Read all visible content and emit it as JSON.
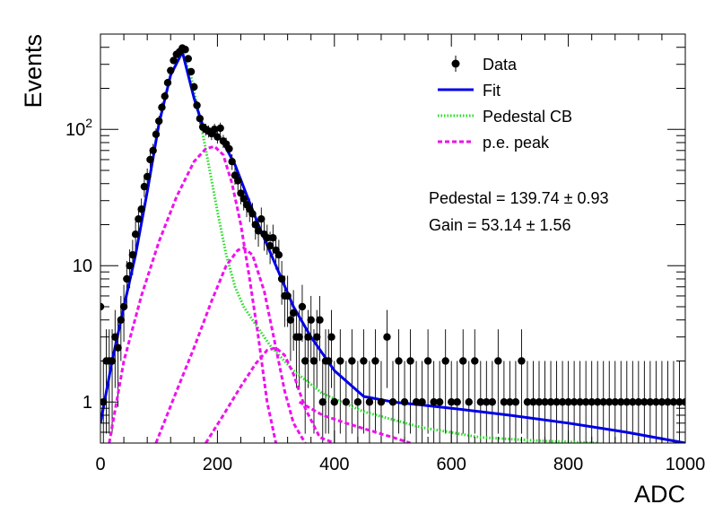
{
  "chart_data": {
    "type": "scatter",
    "xlabel": "ADC",
    "ylabel": "Events",
    "xlim": [
      0,
      1000
    ],
    "ylim": [
      0.5,
      500
    ],
    "y_scale": "log",
    "grid": false,
    "legend_position": "top-right",
    "x_ticks": [
      {
        "value": 0,
        "label": "0"
      },
      {
        "value": 200,
        "label": "200"
      },
      {
        "value": 400,
        "label": "400"
      },
      {
        "value": 600,
        "label": "600"
      },
      {
        "value": 800,
        "label": "800"
      },
      {
        "value": 1000,
        "label": "1000"
      }
    ],
    "y_ticks": [
      {
        "value": 1,
        "base": "1",
        "exp": ""
      },
      {
        "value": 10,
        "base": "10",
        "exp": ""
      },
      {
        "value": 100,
        "base": "10",
        "exp": "2"
      }
    ],
    "legend": [
      {
        "label": "Data",
        "style": "marker",
        "color": "#000000"
      },
      {
        "label": "Fit",
        "style": "solid",
        "color": "#0000e6"
      },
      {
        "label": "Pedestal CB",
        "style": "dotted",
        "color": "#22dd22"
      },
      {
        "label": "p.e. peak",
        "style": "dashed",
        "color": "#ee11ee"
      }
    ],
    "annotations": [
      {
        "text_label": "Pedestal = 139.74 ",
        "pm": "±",
        "text_value": " 0.93"
      },
      {
        "text_label": "Gain = 53.14 ",
        "pm": "±",
        "text_value": " 1.56"
      }
    ],
    "data_points": [
      [
        0,
        5
      ],
      [
        5,
        1
      ],
      [
        10,
        2
      ],
      [
        15,
        2
      ],
      [
        20,
        2
      ],
      [
        25,
        3
      ],
      [
        30,
        2.5
      ],
      [
        35,
        4
      ],
      [
        40,
        5
      ],
      [
        45,
        8
      ],
      [
        50,
        10
      ],
      [
        55,
        12
      ],
      [
        60,
        17
      ],
      [
        65,
        22
      ],
      [
        70,
        26
      ],
      [
        75,
        38
      ],
      [
        80,
        45
      ],
      [
        85,
        60
      ],
      [
        90,
        70
      ],
      [
        95,
        92
      ],
      [
        100,
        115
      ],
      [
        105,
        145
      ],
      [
        110,
        175
      ],
      [
        115,
        220
      ],
      [
        120,
        270
      ],
      [
        125,
        320
      ],
      [
        130,
        355
      ],
      [
        135,
        370
      ],
      [
        140,
        395
      ],
      [
        145,
        385
      ],
      [
        150,
        330
      ],
      [
        155,
        265
      ],
      [
        160,
        205
      ],
      [
        165,
        150
      ],
      [
        170,
        120
      ],
      [
        175,
        104
      ],
      [
        180,
        100
      ],
      [
        185,
        97
      ],
      [
        190,
        93
      ],
      [
        195,
        100
      ],
      [
        200,
        88
      ],
      [
        205,
        102
      ],
      [
        210,
        82
      ],
      [
        215,
        78
      ],
      [
        220,
        72
      ],
      [
        225,
        58
      ],
      [
        230,
        46
      ],
      [
        235,
        42
      ],
      [
        240,
        34
      ],
      [
        245,
        31
      ],
      [
        250,
        28
      ],
      [
        255,
        26
      ],
      [
        260,
        24
      ],
      [
        265,
        20
      ],
      [
        270,
        18
      ],
      [
        275,
        22
      ],
      [
        280,
        17
      ],
      [
        285,
        16
      ],
      [
        290,
        14
      ],
      [
        295,
        16
      ],
      [
        300,
        13
      ],
      [
        305,
        12
      ],
      [
        310,
        8
      ],
      [
        315,
        6
      ],
      [
        320,
        6
      ],
      [
        325,
        4
      ],
      [
        330,
        4.5
      ],
      [
        335,
        3
      ],
      [
        340,
        3
      ],
      [
        345,
        5
      ],
      [
        350,
        2
      ],
      [
        355,
        3
      ],
      [
        360,
        4
      ],
      [
        365,
        2
      ],
      [
        370,
        3
      ],
      [
        375,
        4
      ],
      [
        380,
        1
      ],
      [
        385,
        2
      ],
      [
        390,
        2
      ],
      [
        395,
        3
      ],
      [
        400,
        1
      ],
      [
        410,
        2
      ],
      [
        420,
        1
      ],
      [
        430,
        2
      ],
      [
        440,
        1
      ],
      [
        450,
        2
      ],
      [
        460,
        1
      ],
      [
        470,
        2
      ],
      [
        480,
        1
      ],
      [
        490,
        3
      ],
      [
        500,
        1
      ],
      [
        510,
        2
      ],
      [
        520,
        1
      ],
      [
        530,
        2
      ],
      [
        540,
        1
      ],
      [
        550,
        1
      ],
      [
        560,
        2
      ],
      [
        570,
        1
      ],
      [
        580,
        1
      ],
      [
        590,
        2
      ],
      [
        600,
        1
      ],
      [
        610,
        1
      ],
      [
        620,
        2
      ],
      [
        630,
        1
      ],
      [
        640,
        2
      ],
      [
        650,
        1
      ],
      [
        660,
        1
      ],
      [
        670,
        1
      ],
      [
        680,
        2
      ],
      [
        690,
        1
      ],
      [
        700,
        1
      ],
      [
        710,
        1
      ],
      [
        720,
        2
      ],
      [
        730,
        1
      ],
      [
        740,
        1
      ],
      [
        750,
        1
      ],
      [
        760,
        1
      ],
      [
        770,
        1
      ],
      [
        780,
        1
      ],
      [
        790,
        1
      ],
      [
        800,
        1
      ],
      [
        810,
        1
      ],
      [
        820,
        1
      ],
      [
        830,
        1
      ],
      [
        840,
        1
      ],
      [
        850,
        1
      ],
      [
        860,
        1
      ],
      [
        870,
        1
      ],
      [
        880,
        1
      ],
      [
        890,
        1
      ],
      [
        900,
        1
      ],
      [
        910,
        1
      ],
      [
        920,
        1
      ],
      [
        930,
        1
      ],
      [
        940,
        1
      ],
      [
        950,
        1
      ],
      [
        960,
        1
      ],
      [
        970,
        1
      ],
      [
        980,
        1
      ],
      [
        990,
        1
      ],
      [
        1000,
        1
      ]
    ],
    "series": [
      {
        "name": "Fit",
        "color": "#0000e6",
        "style": "solid",
        "x": [
          0,
          20,
          40,
          60,
          80,
          100,
          120,
          140,
          160,
          175,
          195,
          210,
          230,
          250,
          270,
          300,
          330,
          360,
          400,
          450,
          500,
          550,
          600,
          700,
          800,
          900,
          1000
        ],
        "y": [
          0.7,
          2.0,
          5.0,
          12.0,
          35.0,
          110.0,
          250.0,
          370.0,
          170.0,
          105.0,
          95.0,
          80.0,
          55.0,
          33.0,
          20.0,
          10.0,
          5.0,
          3.0,
          1.7,
          1.1,
          1.0,
          0.95,
          0.9,
          0.8,
          0.7,
          0.6,
          0.5
        ]
      },
      {
        "name": "Pedestal CB",
        "color": "#22dd22",
        "style": "dotted",
        "x": [
          0,
          20,
          40,
          60,
          80,
          100,
          120,
          140,
          155,
          170,
          185,
          200,
          215,
          230,
          245,
          260,
          290,
          330,
          380,
          450,
          550,
          650,
          750,
          850
        ],
        "y": [
          0.7,
          2.0,
          5.0,
          12.0,
          35.0,
          110.0,
          250.0,
          370.0,
          240.0,
          120.0,
          55.0,
          25.0,
          12.0,
          7.0,
          5.0,
          4.0,
          2.6,
          1.7,
          1.15,
          0.85,
          0.65,
          0.55,
          0.52,
          0.5
        ]
      },
      {
        "name": "p.e. peak",
        "color": "#ee11ee",
        "style": "dashed",
        "x": [
          15,
          40,
          70,
          100,
          130,
          160,
          180,
          195,
          210,
          225,
          240,
          255,
          270,
          285,
          300
        ],
        "y": [
          0.5,
          2.0,
          6.0,
          15.0,
          32.0,
          58.0,
          72.0,
          75.0,
          65.0,
          40.0,
          20.0,
          8.0,
          3.0,
          1.0,
          0.5
        ]
      },
      {
        "name": "p.e. peak",
        "color": "#ee11ee",
        "style": "dashed",
        "x": [
          95,
          130,
          160,
          190,
          215,
          235,
          245,
          260,
          280,
          300,
          315,
          330,
          350
        ],
        "y": [
          0.5,
          1.2,
          2.5,
          5.5,
          10.0,
          13.0,
          13.5,
          12.0,
          6.5,
          2.5,
          1.2,
          0.7,
          0.5
        ]
      },
      {
        "name": "p.e. peak",
        "color": "#ee11ee",
        "style": "dashed",
        "x": [
          180,
          210,
          240,
          265,
          285,
          300,
          315,
          330,
          350,
          375,
          400
        ],
        "y": [
          0.5,
          0.8,
          1.3,
          1.9,
          2.4,
          2.5,
          2.2,
          1.6,
          0.9,
          0.55,
          0.5
        ]
      },
      {
        "name": "p.e. peak",
        "color": "#ee11ee",
        "style": "dashed",
        "x": [
          340,
          380,
          420,
          460,
          500,
          530
        ],
        "y": [
          1.0,
          0.8,
          0.7,
          0.62,
          0.55,
          0.5
        ]
      }
    ]
  }
}
